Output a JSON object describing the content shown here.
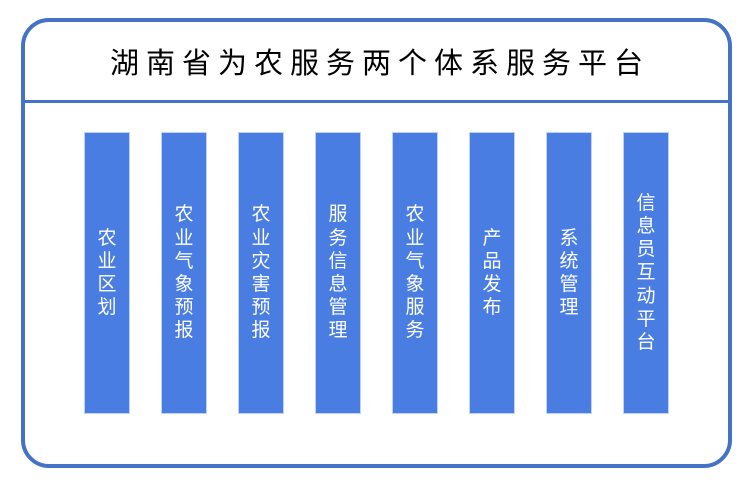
{
  "title": "湖南省为农服务两个体系服务平台",
  "bars": [
    {
      "label": "农业区划"
    },
    {
      "label": "农业气象预报"
    },
    {
      "label": "农业灾害预报"
    },
    {
      "label": "服务信息管理"
    },
    {
      "label": "农业气象服务"
    },
    {
      "label": "产品发布"
    },
    {
      "label": "系统管理"
    },
    {
      "label": "信息员互动平台"
    }
  ],
  "colors": {
    "frame_border": "#4472C4",
    "bar_fill": "#4A7DE2",
    "bar_edge": "#BDD2F5",
    "bar_text": "#FFFFFF",
    "title_color": "#000000",
    "background": "#FFFFFF"
  }
}
